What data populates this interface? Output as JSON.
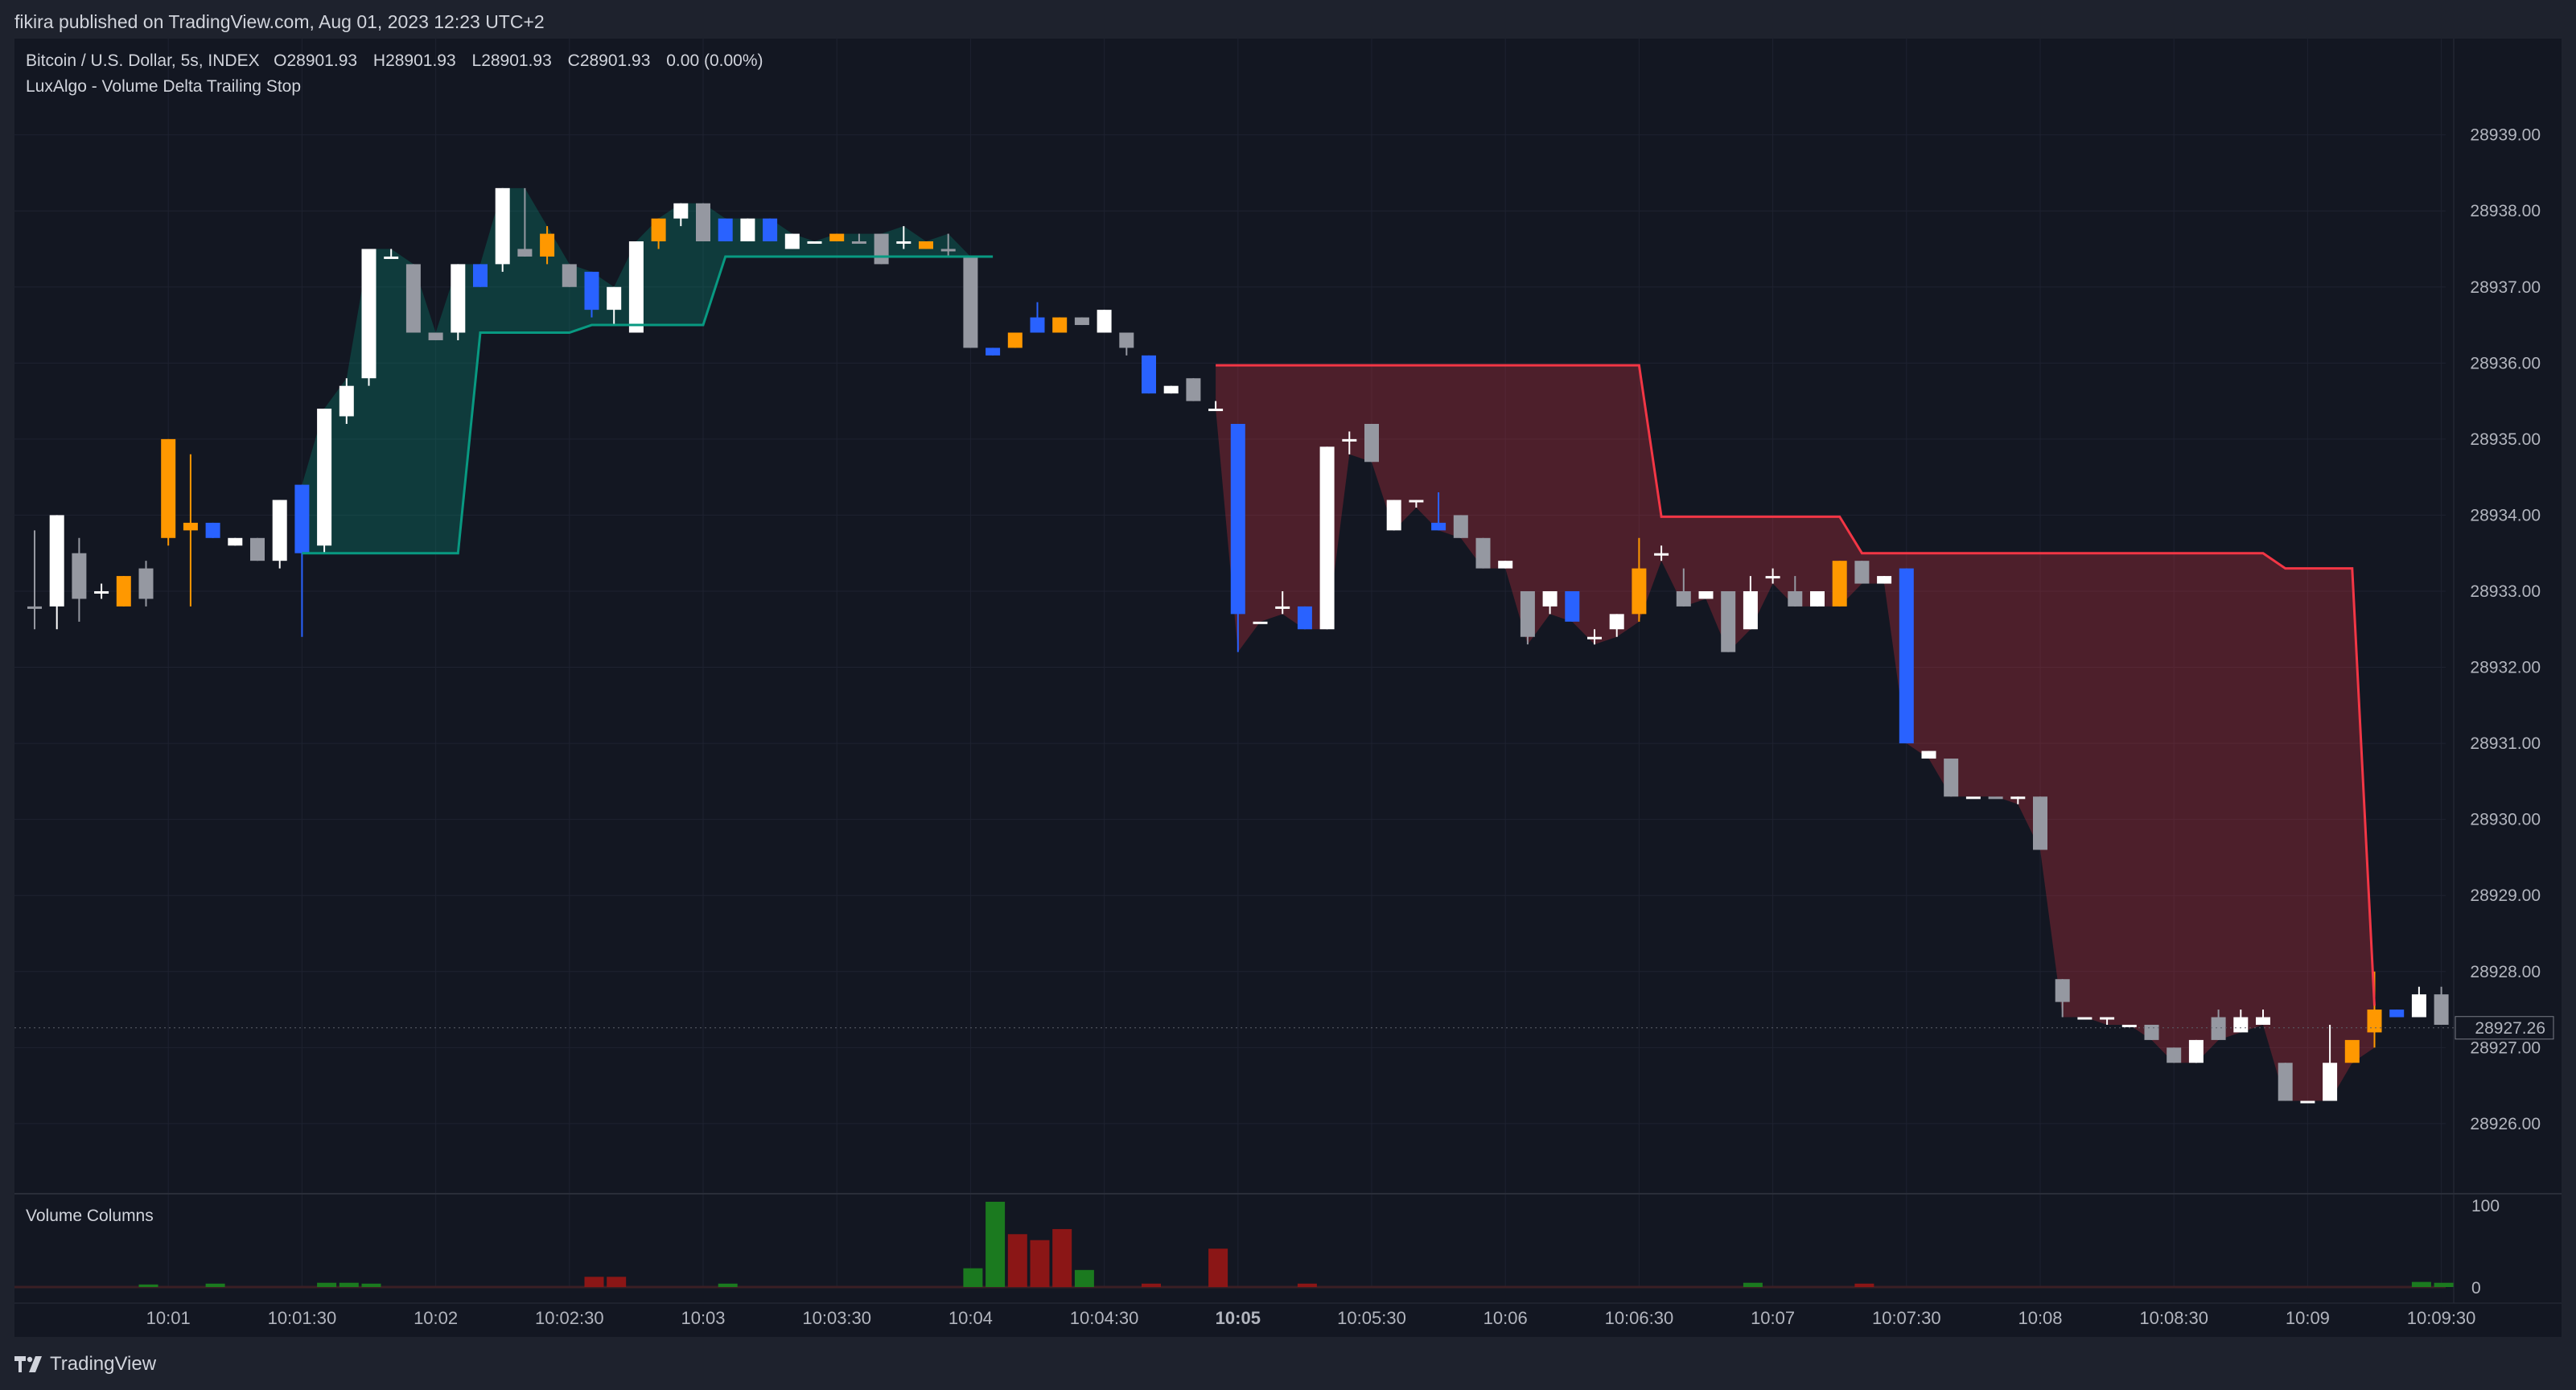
{
  "header": {
    "published": "fikira published on TradingView.com, Aug 01, 2023 12:23 UTC+2"
  },
  "legend": {
    "symbol": "Bitcoin / U.S. Dollar, 5s, INDEX",
    "o_label": "O",
    "o_value": "28901.93",
    "h_label": "H",
    "h_value": "28901.93",
    "l_label": "L",
    "l_value": "28901.93",
    "c_label": "C",
    "c_value": "28901.93",
    "change": "0.00 (0.00%)",
    "indicator": "LuxAlgo - Volume Delta Trailing Stop"
  },
  "volume_pane": {
    "title": "Volume Columns",
    "tick_top": "100",
    "tick_zero": "0"
  },
  "brand": {
    "name": "TradingView"
  },
  "colors": {
    "bull": "#ffffff",
    "bear": "#9598a1",
    "blue": "#2962ff",
    "orange": "#ff9800",
    "stop_up": "#089981",
    "stop_down": "#f23645",
    "vol_up": "#1b7a1f",
    "vol_down": "#8b1616"
  },
  "chart_data": {
    "type": "candlestick",
    "title": "Bitcoin / U.S. Dollar, 5s, INDEX",
    "y_ticks": [
      "28939.00",
      "28938.00",
      "28937.00",
      "28936.00",
      "28935.00",
      "28934.00",
      "28933.00",
      "28932.00",
      "28931.00",
      "28930.00",
      "28929.00",
      "28928.00",
      "28927.00",
      "28926.00"
    ],
    "ylim": [
      28925.1,
      28939.8
    ],
    "last_price": "28927.26",
    "x_ticks": [
      {
        "label": "10:01",
        "i": 6
      },
      {
        "label": "10:01:30",
        "i": 12
      },
      {
        "label": "10:02",
        "i": 18
      },
      {
        "label": "10:02:30",
        "i": 24
      },
      {
        "label": "10:03",
        "i": 30
      },
      {
        "label": "10:03:30",
        "i": 36
      },
      {
        "label": "10:04",
        "i": 42
      },
      {
        "label": "10:04:30",
        "i": 48
      },
      {
        "label": "10:05",
        "i": 54,
        "bold": true
      },
      {
        "label": "10:05:30",
        "i": 60
      },
      {
        "label": "10:06",
        "i": 66
      },
      {
        "label": "10:06:30",
        "i": 72
      },
      {
        "label": "10:07",
        "i": 78
      },
      {
        "label": "10:07:30",
        "i": 84
      },
      {
        "label": "10:08",
        "i": 90
      },
      {
        "label": "10:08:30",
        "i": 96
      },
      {
        "label": "10:09",
        "i": 102
      },
      {
        "label": "10:09:30",
        "i": 108
      }
    ],
    "candles": [
      {
        "o": 28932.8,
        "h": 28933.8,
        "l": 28932.5,
        "c": 28932.8,
        "k": "bear"
      },
      {
        "o": 28932.8,
        "h": 28934.0,
        "l": 28932.5,
        "c": 28934.0,
        "k": "bull"
      },
      {
        "o": 28933.5,
        "h": 28933.7,
        "l": 28932.6,
        "c": 28932.9,
        "k": "bear"
      },
      {
        "o": 28933.0,
        "h": 28933.1,
        "l": 28932.9,
        "c": 28933.0,
        "k": "bull"
      },
      {
        "o": 28933.2,
        "h": 28933.2,
        "l": 28932.8,
        "c": 28932.8,
        "k": "orange"
      },
      {
        "o": 28932.9,
        "h": 28933.4,
        "l": 28932.8,
        "c": 28933.3,
        "k": "bear"
      },
      {
        "o": 28933.7,
        "h": 28935.0,
        "l": 28933.6,
        "c": 28935.0,
        "k": "orange"
      },
      {
        "o": 28933.9,
        "h": 28934.8,
        "l": 28932.8,
        "c": 28933.8,
        "k": "orange"
      },
      {
        "o": 28933.9,
        "h": 28933.9,
        "l": 28933.7,
        "c": 28933.7,
        "k": "blue"
      },
      {
        "o": 28933.7,
        "h": 28933.7,
        "l": 28933.6,
        "c": 28933.6,
        "k": "bull"
      },
      {
        "o": 28933.7,
        "h": 28933.7,
        "l": 28933.4,
        "c": 28933.4,
        "k": "bear"
      },
      {
        "o": 28933.4,
        "h": 28934.2,
        "l": 28933.3,
        "c": 28934.2,
        "k": "bull"
      },
      {
        "o": 28933.5,
        "h": 28934.4,
        "l": 28932.4,
        "c": 28934.4,
        "k": "blue"
      },
      {
        "o": 28933.6,
        "h": 28935.4,
        "l": 28933.5,
        "c": 28935.4,
        "k": "bull"
      },
      {
        "o": 28935.3,
        "h": 28935.8,
        "l": 28935.2,
        "c": 28935.7,
        "k": "bull"
      },
      {
        "o": 28935.8,
        "h": 28937.5,
        "l": 28935.7,
        "c": 28937.5,
        "k": "bull"
      },
      {
        "o": 28937.4,
        "h": 28937.5,
        "l": 28937.4,
        "c": 28937.4,
        "k": "bull"
      },
      {
        "o": 28937.3,
        "h": 28937.3,
        "l": 28936.4,
        "c": 28936.4,
        "k": "bear"
      },
      {
        "o": 28936.4,
        "h": 28936.4,
        "l": 28936.3,
        "c": 28936.3,
        "k": "bear"
      },
      {
        "o": 28936.4,
        "h": 28937.3,
        "l": 28936.3,
        "c": 28937.3,
        "k": "bull"
      },
      {
        "o": 28937.3,
        "h": 28937.3,
        "l": 28937.0,
        "c": 28937.0,
        "k": "blue"
      },
      {
        "o": 28937.3,
        "h": 28938.3,
        "l": 28937.2,
        "c": 28938.3,
        "k": "bull"
      },
      {
        "o": 28937.5,
        "h": 28938.3,
        "l": 28937.4,
        "c": 28937.4,
        "k": "bear"
      },
      {
        "o": 28937.4,
        "h": 28937.8,
        "l": 28937.3,
        "c": 28937.7,
        "k": "orange"
      },
      {
        "o": 28937.3,
        "h": 28937.3,
        "l": 28937.0,
        "c": 28937.0,
        "k": "bear"
      },
      {
        "o": 28937.2,
        "h": 28937.2,
        "l": 28936.6,
        "c": 28936.7,
        "k": "blue"
      },
      {
        "o": 28936.7,
        "h": 28937.0,
        "l": 28936.5,
        "c": 28937.0,
        "k": "bull"
      },
      {
        "o": 28936.4,
        "h": 28937.6,
        "l": 28936.4,
        "c": 28937.6,
        "k": "bull"
      },
      {
        "o": 28937.6,
        "h": 28937.9,
        "l": 28937.5,
        "c": 28937.9,
        "k": "orange"
      },
      {
        "o": 28937.9,
        "h": 28938.1,
        "l": 28937.8,
        "c": 28938.1,
        "k": "bull"
      },
      {
        "o": 28938.1,
        "h": 28938.1,
        "l": 28937.6,
        "c": 28937.6,
        "k": "bear"
      },
      {
        "o": 28937.9,
        "h": 28937.9,
        "l": 28937.6,
        "c": 28937.6,
        "k": "blue"
      },
      {
        "o": 28937.6,
        "h": 28937.9,
        "l": 28937.6,
        "c": 28937.9,
        "k": "bull"
      },
      {
        "o": 28937.9,
        "h": 28937.9,
        "l": 28937.6,
        "c": 28937.6,
        "k": "blue"
      },
      {
        "o": 28937.7,
        "h": 28937.7,
        "l": 28937.5,
        "c": 28937.5,
        "k": "bull"
      },
      {
        "o": 28937.6,
        "h": 28937.6,
        "l": 28937.6,
        "c": 28937.6,
        "k": "bull"
      },
      {
        "o": 28937.6,
        "h": 28937.7,
        "l": 28937.6,
        "c": 28937.7,
        "k": "orange"
      },
      {
        "o": 28937.6,
        "h": 28937.7,
        "l": 28937.6,
        "c": 28937.6,
        "k": "bear"
      },
      {
        "o": 28937.7,
        "h": 28937.7,
        "l": 28937.3,
        "c": 28937.3,
        "k": "bear"
      },
      {
        "o": 28937.6,
        "h": 28937.8,
        "l": 28937.5,
        "c": 28937.6,
        "k": "bull"
      },
      {
        "o": 28937.6,
        "h": 28937.6,
        "l": 28937.5,
        "c": 28937.5,
        "k": "orange"
      },
      {
        "o": 28937.5,
        "h": 28937.7,
        "l": 28937.4,
        "c": 28937.5,
        "k": "bear"
      },
      {
        "o": 28937.4,
        "h": 28937.4,
        "l": 28936.2,
        "c": 28936.2,
        "k": "bear"
      },
      {
        "o": 28936.2,
        "h": 28936.2,
        "l": 28936.1,
        "c": 28936.1,
        "k": "blue"
      },
      {
        "o": 28936.2,
        "h": 28936.4,
        "l": 28936.2,
        "c": 28936.4,
        "k": "orange"
      },
      {
        "o": 28936.6,
        "h": 28936.8,
        "l": 28936.4,
        "c": 28936.4,
        "k": "blue"
      },
      {
        "o": 28936.6,
        "h": 28936.6,
        "l": 28936.4,
        "c": 28936.4,
        "k": "orange"
      },
      {
        "o": 28936.6,
        "h": 28936.6,
        "l": 28936.5,
        "c": 28936.5,
        "k": "bear"
      },
      {
        "o": 28936.4,
        "h": 28936.7,
        "l": 28936.4,
        "c": 28936.7,
        "k": "bull"
      },
      {
        "o": 28936.4,
        "h": 28936.4,
        "l": 28936.1,
        "c": 28936.2,
        "k": "bear"
      },
      {
        "o": 28936.1,
        "h": 28936.1,
        "l": 28935.6,
        "c": 28935.6,
        "k": "blue"
      },
      {
        "o": 28935.7,
        "h": 28935.7,
        "l": 28935.6,
        "c": 28935.6,
        "k": "bull"
      },
      {
        "o": 28935.8,
        "h": 28935.8,
        "l": 28935.5,
        "c": 28935.5,
        "k": "bear"
      },
      {
        "o": 28935.4,
        "h": 28935.5,
        "l": 28935.4,
        "c": 28935.4,
        "k": "bull"
      },
      {
        "o": 28935.2,
        "h": 28935.2,
        "l": 28932.2,
        "c": 28932.7,
        "k": "blue"
      },
      {
        "o": 28932.6,
        "h": 28932.6,
        "l": 28932.6,
        "c": 28932.6,
        "k": "bull"
      },
      {
        "o": 28932.8,
        "h": 28933.0,
        "l": 28932.7,
        "c": 28932.8,
        "k": "bull"
      },
      {
        "o": 28932.8,
        "h": 28932.8,
        "l": 28932.5,
        "c": 28932.5,
        "k": "blue"
      },
      {
        "o": 28932.5,
        "h": 28934.9,
        "l": 28932.5,
        "c": 28934.9,
        "k": "bull"
      },
      {
        "o": 28935.0,
        "h": 28935.1,
        "l": 28934.8,
        "c": 28935.0,
        "k": "bull"
      },
      {
        "o": 28935.2,
        "h": 28935.2,
        "l": 28934.7,
        "c": 28934.7,
        "k": "bear"
      },
      {
        "o": 28934.2,
        "h": 28934.2,
        "l": 28933.8,
        "c": 28933.8,
        "k": "bull"
      },
      {
        "o": 28934.2,
        "h": 28934.2,
        "l": 28934.1,
        "c": 28934.2,
        "k": "bull"
      },
      {
        "o": 28933.9,
        "h": 28934.3,
        "l": 28933.8,
        "c": 28933.8,
        "k": "blue"
      },
      {
        "o": 28934.0,
        "h": 28934.0,
        "l": 28933.7,
        "c": 28933.7,
        "k": "bear"
      },
      {
        "o": 28933.7,
        "h": 28933.7,
        "l": 28933.3,
        "c": 28933.3,
        "k": "bear"
      },
      {
        "o": 28933.4,
        "h": 28933.4,
        "l": 28933.3,
        "c": 28933.3,
        "k": "bull"
      },
      {
        "o": 28933.0,
        "h": 28933.0,
        "l": 28932.3,
        "c": 28932.4,
        "k": "bear"
      },
      {
        "o": 28932.8,
        "h": 28933.0,
        "l": 28932.7,
        "c": 28933.0,
        "k": "bull"
      },
      {
        "o": 28933.0,
        "h": 28933.0,
        "l": 28932.6,
        "c": 28932.6,
        "k": "blue"
      },
      {
        "o": 28932.4,
        "h": 28932.5,
        "l": 28932.3,
        "c": 28932.4,
        "k": "bull"
      },
      {
        "o": 28932.5,
        "h": 28932.7,
        "l": 28932.4,
        "c": 28932.7,
        "k": "bull"
      },
      {
        "o": 28932.7,
        "h": 28933.7,
        "l": 28932.6,
        "c": 28933.3,
        "k": "orange"
      },
      {
        "o": 28933.5,
        "h": 28933.6,
        "l": 28933.4,
        "c": 28933.5,
        "k": "bull"
      },
      {
        "o": 28933.0,
        "h": 28933.3,
        "l": 28932.8,
        "c": 28932.8,
        "k": "bear"
      },
      {
        "o": 28933.0,
        "h": 28933.0,
        "l": 28932.9,
        "c": 28932.9,
        "k": "bull"
      },
      {
        "o": 28933.0,
        "h": 28933.0,
        "l": 28932.2,
        "c": 28932.2,
        "k": "bear"
      },
      {
        "o": 28932.5,
        "h": 28933.2,
        "l": 28932.5,
        "c": 28933.0,
        "k": "bull"
      },
      {
        "o": 28933.2,
        "h": 28933.3,
        "l": 28933.1,
        "c": 28933.2,
        "k": "bull"
      },
      {
        "o": 28933.0,
        "h": 28933.2,
        "l": 28932.8,
        "c": 28932.8,
        "k": "bear"
      },
      {
        "o": 28932.8,
        "h": 28933.0,
        "l": 28932.8,
        "c": 28933.0,
        "k": "bull"
      },
      {
        "o": 28932.8,
        "h": 28933.4,
        "l": 28932.8,
        "c": 28933.4,
        "k": "orange"
      },
      {
        "o": 28933.4,
        "h": 28933.4,
        "l": 28933.1,
        "c": 28933.1,
        "k": "bear"
      },
      {
        "o": 28933.2,
        "h": 28933.2,
        "l": 28933.1,
        "c": 28933.1,
        "k": "bull"
      },
      {
        "o": 28933.3,
        "h": 28933.3,
        "l": 28931.0,
        "c": 28931.0,
        "k": "blue"
      },
      {
        "o": 28930.9,
        "h": 28930.9,
        "l": 28930.8,
        "c": 28930.8,
        "k": "bull"
      },
      {
        "o": 28930.8,
        "h": 28930.8,
        "l": 28930.3,
        "c": 28930.3,
        "k": "bear"
      },
      {
        "o": 28930.3,
        "h": 28930.3,
        "l": 28930.3,
        "c": 28930.3,
        "k": "bull"
      },
      {
        "o": 28930.3,
        "h": 28930.3,
        "l": 28930.3,
        "c": 28930.3,
        "k": "bear"
      },
      {
        "o": 28930.3,
        "h": 28930.3,
        "l": 28930.2,
        "c": 28930.3,
        "k": "bull"
      },
      {
        "o": 28930.3,
        "h": 28930.3,
        "l": 28929.6,
        "c": 28929.6,
        "k": "bear"
      },
      {
        "o": 28927.9,
        "h": 28927.9,
        "l": 28927.4,
        "c": 28927.6,
        "k": "bear"
      },
      {
        "o": 28927.4,
        "h": 28927.4,
        "l": 28927.4,
        "c": 28927.4,
        "k": "bull"
      },
      {
        "o": 28927.4,
        "h": 28927.4,
        "l": 28927.3,
        "c": 28927.4,
        "k": "bull"
      },
      {
        "o": 28927.3,
        "h": 28927.3,
        "l": 28927.3,
        "c": 28927.3,
        "k": "bull"
      },
      {
        "o": 28927.3,
        "h": 28927.3,
        "l": 28927.1,
        "c": 28927.1,
        "k": "bear"
      },
      {
        "o": 28927.0,
        "h": 28927.0,
        "l": 28926.8,
        "c": 28926.8,
        "k": "bear"
      },
      {
        "o": 28926.8,
        "h": 28927.1,
        "l": 28926.8,
        "c": 28927.1,
        "k": "bull"
      },
      {
        "o": 28927.4,
        "h": 28927.5,
        "l": 28927.1,
        "c": 28927.1,
        "k": "bear"
      },
      {
        "o": 28927.2,
        "h": 28927.5,
        "l": 28927.2,
        "c": 28927.4,
        "k": "bull"
      },
      {
        "o": 28927.4,
        "h": 28927.5,
        "l": 28927.3,
        "c": 28927.3,
        "k": "bull"
      },
      {
        "o": 28926.8,
        "h": 28926.8,
        "l": 28926.3,
        "c": 28926.3,
        "k": "bear"
      },
      {
        "o": 28926.3,
        "h": 28926.3,
        "l": 28926.3,
        "c": 28926.3,
        "k": "bull"
      },
      {
        "o": 28926.3,
        "h": 28927.3,
        "l": 28926.3,
        "c": 28926.8,
        "k": "bull"
      },
      {
        "o": 28926.8,
        "h": 28927.0,
        "l": 28926.8,
        "c": 28927.1,
        "k": "orange"
      },
      {
        "o": 28927.2,
        "h": 28928.0,
        "l": 28927.0,
        "c": 28927.5,
        "k": "orange"
      },
      {
        "o": 28927.4,
        "h": 28927.5,
        "l": 28927.4,
        "c": 28927.5,
        "k": "blue"
      },
      {
        "o": 28927.4,
        "h": 28927.8,
        "l": 28927.4,
        "c": 28927.7,
        "k": "bull"
      },
      {
        "o": 28927.7,
        "h": 28927.8,
        "l": 28927.3,
        "c": 28927.3,
        "k": "bear"
      }
    ],
    "trailing_stop": {
      "up_segment": [
        [
          12,
          28933.5
        ],
        [
          19,
          28933.5
        ],
        [
          20,
          28936.4
        ],
        [
          24,
          28936.4
        ],
        [
          25,
          28936.5
        ],
        [
          30,
          28936.5
        ],
        [
          31,
          28937.4
        ],
        [
          43,
          28937.4
        ]
      ],
      "down_segment": [
        [
          53,
          28935.97
        ],
        [
          72,
          28935.97
        ],
        [
          73,
          28933.98
        ],
        [
          81,
          28933.98
        ],
        [
          82,
          28933.5
        ],
        [
          100,
          28933.5
        ],
        [
          101,
          28933.3
        ],
        [
          104,
          28933.3
        ],
        [
          105,
          28927.55
        ]
      ]
    },
    "volume": [
      {
        "i": 25,
        "v": 12,
        "d": "down"
      },
      {
        "i": 26,
        "v": 12,
        "d": "down"
      },
      {
        "i": 42,
        "v": 22,
        "d": "up"
      },
      {
        "i": 43,
        "v": 100,
        "d": "up"
      },
      {
        "i": 44,
        "v": 62,
        "d": "down"
      },
      {
        "i": 45,
        "v": 55,
        "d": "down"
      },
      {
        "i": 46,
        "v": 68,
        "d": "down"
      },
      {
        "i": 47,
        "v": 20,
        "d": "up"
      },
      {
        "i": 53,
        "v": 45,
        "d": "down"
      },
      {
        "i": 5,
        "v": 3,
        "d": "up"
      },
      {
        "i": 8,
        "v": 4,
        "d": "up"
      },
      {
        "i": 13,
        "v": 5,
        "d": "up"
      },
      {
        "i": 14,
        "v": 5,
        "d": "up"
      },
      {
        "i": 15,
        "v": 4,
        "d": "up"
      },
      {
        "i": 31,
        "v": 4,
        "d": "up"
      },
      {
        "i": 50,
        "v": 4,
        "d": "down"
      },
      {
        "i": 57,
        "v": 4,
        "d": "down"
      },
      {
        "i": 77,
        "v": 5,
        "d": "up"
      },
      {
        "i": 82,
        "v": 4,
        "d": "down"
      },
      {
        "i": 107,
        "v": 6,
        "d": "up"
      },
      {
        "i": 108,
        "v": 5,
        "d": "up"
      }
    ]
  }
}
